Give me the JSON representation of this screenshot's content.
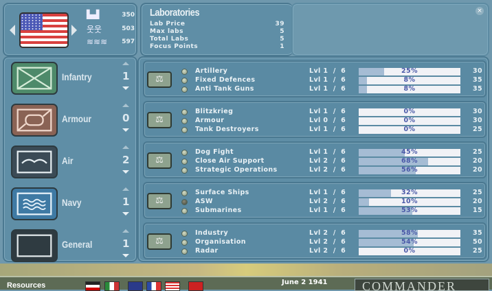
{
  "country": {
    "flag": "USA",
    "prev_icon": "arrow-left",
    "next_icon": "arrow-right"
  },
  "resources": [
    {
      "icon": "factory-icon",
      "glyph": "▙▟",
      "value": "350"
    },
    {
      "icon": "manpower-icon",
      "glyph": "웃웃",
      "value": "503"
    },
    {
      "icon": "money-icon",
      "glyph": "≋≋≋",
      "value": "597"
    }
  ],
  "info": {
    "title": "Laboratories",
    "rows": [
      {
        "label": "Lab Price",
        "value": "39"
      },
      {
        "label": "Max labs",
        "value": "5"
      },
      {
        "label": "Total Labs",
        "value": "5"
      },
      {
        "label": "Focus Points",
        "value": "1"
      }
    ]
  },
  "close_glyph": "×",
  "categories": [
    {
      "label": "Infantry",
      "count": "1",
      "color": "#4e8a6a"
    },
    {
      "label": "Armour",
      "count": "0",
      "color": "#8a6355"
    },
    {
      "label": "Air",
      "count": "2",
      "color": "#3b4b56"
    },
    {
      "label": "Navy",
      "count": "1",
      "color": "#3f7aa4"
    },
    {
      "label": "General",
      "count": "1",
      "color": "#2f3b41"
    }
  ],
  "scale_glyph": "⚖",
  "groups": [
    {
      "techs": [
        {
          "name": "Artillery",
          "level": "Lvl 1  /  6",
          "progress": 25,
          "pct": "25%",
          "cost": "30",
          "active": true
        },
        {
          "name": "Fixed Defences",
          "level": "Lvl 1  /  6",
          "progress": 8,
          "pct": "8%",
          "cost": "35",
          "active": true
        },
        {
          "name": "Anti Tank Guns",
          "level": "Lvl 1  /  6",
          "progress": 8,
          "pct": "8%",
          "cost": "35",
          "active": true
        }
      ]
    },
    {
      "techs": [
        {
          "name": "Blitzkrieg",
          "level": "Lvl 1  /  6",
          "progress": 0,
          "pct": "0%",
          "cost": "30",
          "active": true
        },
        {
          "name": "Armour",
          "level": "Lvl 0  /  6",
          "progress": 0,
          "pct": "0%",
          "cost": "30",
          "active": true
        },
        {
          "name": "Tank Destroyers",
          "level": "Lvl 1  /  6",
          "progress": 0,
          "pct": "0%",
          "cost": "25",
          "active": true
        }
      ]
    },
    {
      "techs": [
        {
          "name": "Dog Fight",
          "level": "Lvl 1  /  6",
          "progress": 45,
          "pct": "45%",
          "cost": "25",
          "active": true
        },
        {
          "name": "Close Air Support",
          "level": "Lvl 2  /  6",
          "progress": 68,
          "pct": "68%",
          "cost": "20",
          "active": true
        },
        {
          "name": "Strategic Operations",
          "level": "Lvl 2  /  6",
          "progress": 56,
          "pct": "56%",
          "cost": "20",
          "active": true
        }
      ]
    },
    {
      "techs": [
        {
          "name": "Surface Ships",
          "level": "Lvl 1  /  6",
          "progress": 32,
          "pct": "32%",
          "cost": "25",
          "active": true
        },
        {
          "name": "ASW",
          "level": "Lvl 2  /  6",
          "progress": 10,
          "pct": "10%",
          "cost": "20",
          "active": false
        },
        {
          "name": "Submarines",
          "level": "Lvl 1  /  6",
          "progress": 53,
          "pct": "53%",
          "cost": "15",
          "active": true
        }
      ]
    },
    {
      "techs": [
        {
          "name": "Industry",
          "level": "Lvl 2  /  6",
          "progress": 58,
          "pct": "58%",
          "cost": "35",
          "active": true
        },
        {
          "name": "Organisation",
          "level": "Lvl 2  /  6",
          "progress": 54,
          "pct": "54%",
          "cost": "50",
          "active": true
        },
        {
          "name": "Radar",
          "level": "Lvl 2  /  6",
          "progress": 0,
          "pct": "0%",
          "cost": "25",
          "active": true
        }
      ]
    }
  ],
  "bottom": {
    "resources_label": "Resources",
    "date": "June 2 1941",
    "brand": "COMMANDER",
    "flags": [
      "Germany",
      "Italy",
      "UK",
      "France",
      "USA",
      "USSR"
    ]
  }
}
